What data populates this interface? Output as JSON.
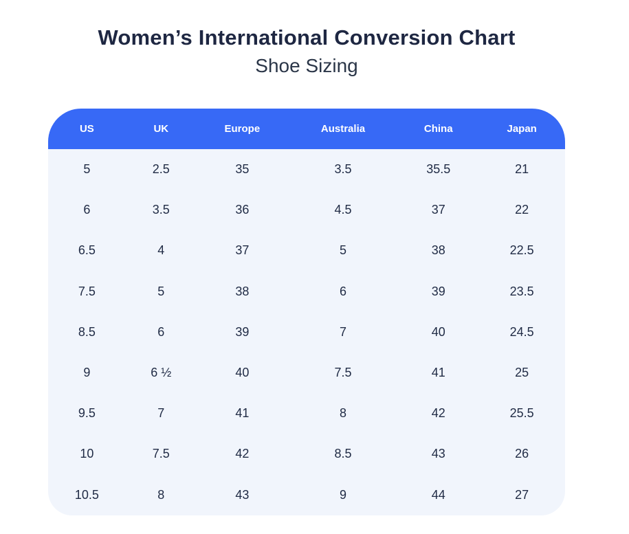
{
  "page": {
    "title": "Women’s International Conversion Chart",
    "subtitle": "Shoe Sizing"
  },
  "colors": {
    "header_bg": "#3769f6",
    "header_text": "#ffffff",
    "body_bg": "#f1f5fc",
    "row_text": "#1f2a44",
    "title_text": "#1e2742",
    "page_bg": "#ffffff"
  },
  "table": {
    "columns": [
      "US",
      "UK",
      "Europe",
      "Australia",
      "China",
      "Japan"
    ],
    "rows": [
      [
        "5",
        "2.5",
        "35",
        "3.5",
        "35.5",
        "21"
      ],
      [
        "6",
        "3.5",
        "36",
        "4.5",
        "37",
        "22"
      ],
      [
        "6.5",
        "4",
        "37",
        "5",
        "38",
        "22.5"
      ],
      [
        "7.5",
        "5",
        "38",
        "6",
        "39",
        "23.5"
      ],
      [
        "8.5",
        "6",
        "39",
        "7",
        "40",
        "24.5"
      ],
      [
        "9",
        "6 ½",
        "40",
        "7.5",
        "41",
        "25"
      ],
      [
        "9.5",
        "7",
        "41",
        "8",
        "42",
        "25.5"
      ],
      [
        "10",
        "7.5",
        "42",
        "8.5",
        "43",
        "26"
      ],
      [
        "10.5",
        "8",
        "43",
        "9",
        "44",
        "27"
      ]
    ]
  },
  "chart_data": {
    "type": "table",
    "title": "Women’s International Conversion Chart",
    "subtitle": "Shoe Sizing",
    "columns": [
      "US",
      "UK",
      "Europe",
      "Australia",
      "China",
      "Japan"
    ],
    "rows": [
      [
        "5",
        "2.5",
        "35",
        "3.5",
        "35.5",
        "21"
      ],
      [
        "6",
        "3.5",
        "36",
        "4.5",
        "37",
        "22"
      ],
      [
        "6.5",
        "4",
        "37",
        "5",
        "38",
        "22.5"
      ],
      [
        "7.5",
        "5",
        "38",
        "6",
        "39",
        "23.5"
      ],
      [
        "8.5",
        "6",
        "39",
        "7",
        "40",
        "24.5"
      ],
      [
        "9",
        "6 ½",
        "40",
        "7.5",
        "41",
        "25"
      ],
      [
        "9.5",
        "7",
        "41",
        "8",
        "42",
        "25.5"
      ],
      [
        "10",
        "7.5",
        "42",
        "8.5",
        "43",
        "26"
      ],
      [
        "10.5",
        "8",
        "43",
        "9",
        "44",
        "27"
      ]
    ],
    "legend_position": "none",
    "grid": false
  }
}
